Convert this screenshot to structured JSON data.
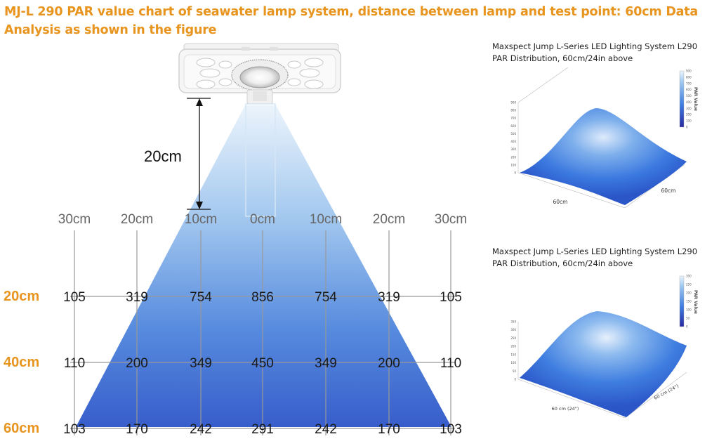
{
  "title": "MJ-L 290 PAR value chart of seawater lamp system, distance between lamp and test point: 60cm Data Analysis as shown in the figure",
  "dimension_label": "20cm",
  "colors": {
    "title": "#e8951f",
    "row_label": "#e8951f",
    "center_column": "#e8951f",
    "column_label": "#666666",
    "beam_top": "#eaf3fb",
    "beam_bottom": "#2d55c8",
    "grid": "#999999"
  },
  "chart_data": {
    "type": "table",
    "columns": [
      "30cm",
      "20cm",
      "10cm",
      "0cm",
      "10cm",
      "20cm",
      "30cm"
    ],
    "rows": [
      {
        "label": "20cm",
        "values": [
          105,
          319,
          754,
          856,
          754,
          319,
          105
        ]
      },
      {
        "label": "40cm",
        "values": [
          110,
          200,
          349,
          450,
          349,
          200,
          110
        ]
      },
      {
        "label": "60cm",
        "values": [
          103,
          170,
          242,
          291,
          242,
          170,
          103
        ]
      }
    ]
  },
  "panels": [
    {
      "title_line1": "Maxspect Jump L-Series LED Lighting System L290",
      "title_line2": "PAR Distribution, 60cm/24in above",
      "colorbar_label": "PAR Value",
      "x_axis_label": "60cm",
      "y_axis_label": "60cm",
      "z_ticks": [
        "900",
        "800",
        "700",
        "600",
        "500",
        "400",
        "300",
        "200",
        "100",
        "0"
      ],
      "colorbar_ticks": [
        "900",
        "800",
        "700",
        "600",
        "500",
        "400",
        "300",
        "200",
        "100",
        "0"
      ]
    },
    {
      "title_line1": "Maxspect Jump L-Series LED Lighting System L290",
      "title_line2": "PAR Distribution, 60cm/24in above",
      "colorbar_label": "PAR Value",
      "x_axis_label": "60 cm (24\")",
      "y_axis_label": "60 cm (24\")",
      "z_ticks": [
        "350",
        "300",
        "250",
        "200",
        "150",
        "100",
        "50",
        "0"
      ],
      "colorbar_ticks": [
        "300",
        "250",
        "200",
        "150",
        "100",
        "50",
        "0"
      ]
    }
  ]
}
